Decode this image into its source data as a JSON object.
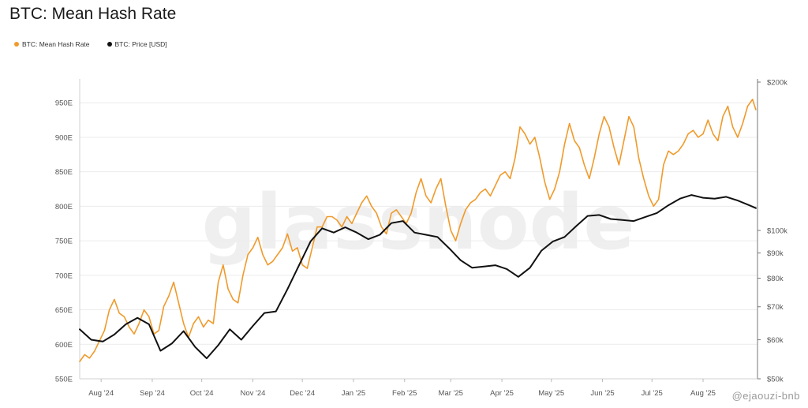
{
  "chart_data": {
    "type": "line",
    "title": "BTC: Mean Hash Rate",
    "legend_position": "top-left",
    "grid": "horizontal",
    "x_range": [
      "2024-07-19",
      "2025-09-03"
    ],
    "x_ticks": [
      {
        "date": "2024-08-01",
        "label": "Aug '24"
      },
      {
        "date": "2024-09-01",
        "label": "Sep '24"
      },
      {
        "date": "2024-10-01",
        "label": "Oct '24"
      },
      {
        "date": "2024-11-01",
        "label": "Nov '24"
      },
      {
        "date": "2024-12-01",
        "label": "Dec '24"
      },
      {
        "date": "2025-01-01",
        "label": "Jan '25"
      },
      {
        "date": "2025-02-01",
        "label": "Feb '25"
      },
      {
        "date": "2025-03-01",
        "label": "Mar '25"
      },
      {
        "date": "2025-04-01",
        "label": "Apr '25"
      },
      {
        "date": "2025-05-01",
        "label": "May '25"
      },
      {
        "date": "2025-06-01",
        "label": "Jun '25"
      },
      {
        "date": "2025-07-01",
        "label": "Jul '25"
      },
      {
        "date": "2025-08-01",
        "label": "Aug '25"
      }
    ],
    "left_axis": {
      "scale": "linear",
      "range": [
        550,
        980
      ],
      "unit_suffix": "E",
      "ticks": [
        {
          "value": 550,
          "label": "550E"
        },
        {
          "value": 600,
          "label": "600E"
        },
        {
          "value": 650,
          "label": "650E"
        },
        {
          "value": 700,
          "label": "700E"
        },
        {
          "value": 750,
          "label": "750E"
        },
        {
          "value": 800,
          "label": "800E"
        },
        {
          "value": 850,
          "label": "850E"
        },
        {
          "value": 900,
          "label": "900E"
        },
        {
          "value": 950,
          "label": "950E"
        }
      ]
    },
    "right_axis": {
      "scale": "log",
      "range": [
        50000,
        200000
      ],
      "ticks": [
        {
          "value": 50000,
          "label": "$50k"
        },
        {
          "value": 60000,
          "label": "$60k"
        },
        {
          "value": 70000,
          "label": "$70k"
        },
        {
          "value": 80000,
          "label": "$80k"
        },
        {
          "value": 90000,
          "label": "$90k"
        },
        {
          "value": 100000,
          "label": "$100k"
        },
        {
          "value": 200000,
          "label": "$200k"
        }
      ]
    },
    "series": [
      {
        "name": "BTC: Mean Hash Rate",
        "axis": "left",
        "color": "#f09a2b",
        "points": [
          [
            "2024-07-19",
            575
          ],
          [
            "2024-07-22",
            585
          ],
          [
            "2024-07-25",
            580
          ],
          [
            "2024-07-28",
            590
          ],
          [
            "2024-07-31",
            605
          ],
          [
            "2024-08-03",
            620
          ],
          [
            "2024-08-06",
            650
          ],
          [
            "2024-08-09",
            665
          ],
          [
            "2024-08-12",
            645
          ],
          [
            "2024-08-15",
            640
          ],
          [
            "2024-08-18",
            625
          ],
          [
            "2024-08-21",
            615
          ],
          [
            "2024-08-24",
            630
          ],
          [
            "2024-08-27",
            650
          ],
          [
            "2024-08-30",
            640
          ],
          [
            "2024-09-02",
            615
          ],
          [
            "2024-09-05",
            620
          ],
          [
            "2024-09-08",
            655
          ],
          [
            "2024-09-11",
            670
          ],
          [
            "2024-09-14",
            690
          ],
          [
            "2024-09-17",
            660
          ],
          [
            "2024-09-20",
            630
          ],
          [
            "2024-09-23",
            610
          ],
          [
            "2024-09-26",
            630
          ],
          [
            "2024-09-29",
            640
          ],
          [
            "2024-10-02",
            625
          ],
          [
            "2024-10-05",
            635
          ],
          [
            "2024-10-08",
            630
          ],
          [
            "2024-10-11",
            690
          ],
          [
            "2024-10-14",
            715
          ],
          [
            "2024-10-17",
            680
          ],
          [
            "2024-10-20",
            665
          ],
          [
            "2024-10-23",
            660
          ],
          [
            "2024-10-26",
            700
          ],
          [
            "2024-10-29",
            730
          ],
          [
            "2024-11-01",
            740
          ],
          [
            "2024-11-04",
            755
          ],
          [
            "2024-11-07",
            730
          ],
          [
            "2024-11-10",
            715
          ],
          [
            "2024-11-13",
            720
          ],
          [
            "2024-11-16",
            730
          ],
          [
            "2024-11-19",
            740
          ],
          [
            "2024-11-22",
            760
          ],
          [
            "2024-11-25",
            735
          ],
          [
            "2024-11-28",
            740
          ],
          [
            "2024-12-01",
            715
          ],
          [
            "2024-12-04",
            710
          ],
          [
            "2024-12-07",
            740
          ],
          [
            "2024-12-10",
            770
          ],
          [
            "2024-12-13",
            770
          ],
          [
            "2024-12-16",
            785
          ],
          [
            "2024-12-19",
            785
          ],
          [
            "2024-12-22",
            780
          ],
          [
            "2024-12-25",
            770
          ],
          [
            "2024-12-28",
            785
          ],
          [
            "2024-12-31",
            775
          ],
          [
            "2025-01-03",
            790
          ],
          [
            "2025-01-06",
            805
          ],
          [
            "2025-01-09",
            815
          ],
          [
            "2025-01-12",
            800
          ],
          [
            "2025-01-15",
            790
          ],
          [
            "2025-01-18",
            770
          ],
          [
            "2025-01-21",
            760
          ],
          [
            "2025-01-24",
            790
          ],
          [
            "2025-01-27",
            795
          ],
          [
            "2025-01-30",
            785
          ],
          [
            "2025-02-02",
            775
          ],
          [
            "2025-02-05",
            790
          ],
          [
            "2025-02-08",
            820
          ],
          [
            "2025-02-11",
            840
          ],
          [
            "2025-02-14",
            815
          ],
          [
            "2025-02-17",
            805
          ],
          [
            "2025-02-20",
            825
          ],
          [
            "2025-02-23",
            840
          ],
          [
            "2025-02-26",
            800
          ],
          [
            "2025-03-01",
            765
          ],
          [
            "2025-03-04",
            750
          ],
          [
            "2025-03-07",
            775
          ],
          [
            "2025-03-10",
            795
          ],
          [
            "2025-03-13",
            805
          ],
          [
            "2025-03-16",
            810
          ],
          [
            "2025-03-19",
            820
          ],
          [
            "2025-03-22",
            825
          ],
          [
            "2025-03-25",
            815
          ],
          [
            "2025-03-28",
            830
          ],
          [
            "2025-03-31",
            845
          ],
          [
            "2025-04-03",
            850
          ],
          [
            "2025-04-06",
            840
          ],
          [
            "2025-04-09",
            870
          ],
          [
            "2025-04-12",
            915
          ],
          [
            "2025-04-15",
            905
          ],
          [
            "2025-04-18",
            890
          ],
          [
            "2025-04-21",
            900
          ],
          [
            "2025-04-24",
            870
          ],
          [
            "2025-04-27",
            835
          ],
          [
            "2025-04-30",
            810
          ],
          [
            "2025-05-03",
            825
          ],
          [
            "2025-05-06",
            850
          ],
          [
            "2025-05-09",
            890
          ],
          [
            "2025-05-12",
            920
          ],
          [
            "2025-05-15",
            895
          ],
          [
            "2025-05-18",
            885
          ],
          [
            "2025-05-21",
            860
          ],
          [
            "2025-05-24",
            840
          ],
          [
            "2025-05-27",
            870
          ],
          [
            "2025-05-30",
            905
          ],
          [
            "2025-06-02",
            930
          ],
          [
            "2025-06-05",
            915
          ],
          [
            "2025-06-08",
            885
          ],
          [
            "2025-06-11",
            860
          ],
          [
            "2025-06-14",
            895
          ],
          [
            "2025-06-17",
            930
          ],
          [
            "2025-06-20",
            915
          ],
          [
            "2025-06-23",
            870
          ],
          [
            "2025-06-26",
            840
          ],
          [
            "2025-06-29",
            815
          ],
          [
            "2025-07-02",
            800
          ],
          [
            "2025-07-05",
            810
          ],
          [
            "2025-07-08",
            860
          ],
          [
            "2025-07-11",
            880
          ],
          [
            "2025-07-14",
            875
          ],
          [
            "2025-07-17",
            880
          ],
          [
            "2025-07-20",
            890
          ],
          [
            "2025-07-23",
            905
          ],
          [
            "2025-07-26",
            910
          ],
          [
            "2025-07-29",
            900
          ],
          [
            "2025-08-01",
            905
          ],
          [
            "2025-08-04",
            925
          ],
          [
            "2025-08-07",
            905
          ],
          [
            "2025-08-10",
            895
          ],
          [
            "2025-08-13",
            930
          ],
          [
            "2025-08-16",
            945
          ],
          [
            "2025-08-19",
            915
          ],
          [
            "2025-08-22",
            900
          ],
          [
            "2025-08-25",
            920
          ],
          [
            "2025-08-28",
            945
          ],
          [
            "2025-08-31",
            955
          ],
          [
            "2025-09-02",
            940
          ]
        ]
      },
      {
        "name": "BTC: Price [USD]",
        "axis": "right",
        "color": "#111111",
        "points": [
          [
            "2024-07-19",
            63000
          ],
          [
            "2024-07-26",
            60000
          ],
          [
            "2024-08-02",
            59500
          ],
          [
            "2024-08-09",
            61500
          ],
          [
            "2024-08-16",
            64500
          ],
          [
            "2024-08-23",
            66500
          ],
          [
            "2024-08-30",
            64500
          ],
          [
            "2024-09-06",
            57000
          ],
          [
            "2024-09-13",
            59000
          ],
          [
            "2024-09-20",
            62500
          ],
          [
            "2024-09-27",
            58000
          ],
          [
            "2024-10-04",
            55000
          ],
          [
            "2024-10-11",
            58500
          ],
          [
            "2024-10-18",
            63000
          ],
          [
            "2024-10-25",
            60000
          ],
          [
            "2024-11-01",
            64000
          ],
          [
            "2024-11-08",
            68000
          ],
          [
            "2024-11-15",
            68500
          ],
          [
            "2024-11-22",
            76000
          ],
          [
            "2024-11-29",
            85000
          ],
          [
            "2024-12-06",
            95000
          ],
          [
            "2024-12-13",
            101000
          ],
          [
            "2024-12-20",
            99000
          ],
          [
            "2024-12-27",
            101500
          ],
          [
            "2025-01-03",
            99000
          ],
          [
            "2025-01-10",
            96000
          ],
          [
            "2025-01-17",
            98000
          ],
          [
            "2025-01-24",
            103500
          ],
          [
            "2025-01-31",
            104500
          ],
          [
            "2025-02-07",
            99000
          ],
          [
            "2025-02-14",
            98000
          ],
          [
            "2025-02-21",
            97000
          ],
          [
            "2025-02-28",
            92000
          ],
          [
            "2025-03-07",
            87000
          ],
          [
            "2025-03-14",
            84000
          ],
          [
            "2025-03-21",
            84500
          ],
          [
            "2025-03-28",
            85000
          ],
          [
            "2025-04-04",
            83500
          ],
          [
            "2025-04-11",
            80500
          ],
          [
            "2025-04-18",
            84000
          ],
          [
            "2025-04-25",
            91000
          ],
          [
            "2025-05-02",
            95000
          ],
          [
            "2025-05-09",
            97000
          ],
          [
            "2025-05-16",
            102000
          ],
          [
            "2025-05-23",
            107000
          ],
          [
            "2025-05-30",
            107500
          ],
          [
            "2025-06-06",
            105500
          ],
          [
            "2025-06-13",
            105000
          ],
          [
            "2025-06-20",
            104500
          ],
          [
            "2025-06-27",
            106500
          ],
          [
            "2025-07-04",
            108500
          ],
          [
            "2025-07-11",
            112500
          ],
          [
            "2025-07-18",
            116000
          ],
          [
            "2025-07-25",
            118000
          ],
          [
            "2025-08-01",
            116500
          ],
          [
            "2025-08-08",
            116000
          ],
          [
            "2025-08-15",
            117000
          ],
          [
            "2025-08-22",
            115000
          ],
          [
            "2025-08-29",
            112500
          ],
          [
            "2025-09-02",
            111000
          ]
        ]
      }
    ],
    "watermark": "glassnode"
  },
  "credit": "@ejaouzi-bnb"
}
